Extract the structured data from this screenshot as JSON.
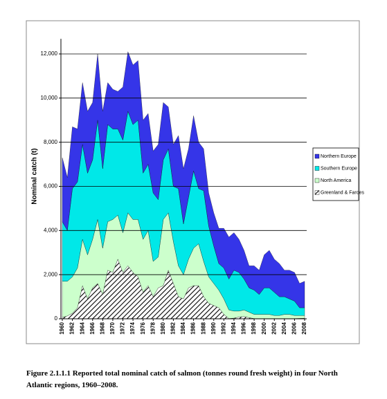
{
  "chart_data": {
    "type": "stacked-area",
    "y_label": "Nominal catch (t)",
    "caption": "Figure 2.1.1.1 Reported total nominal catch of salmon (tonnes round fresh weight) in four North Atlantic regions, 1960–2008.",
    "x": [
      1960,
      1961,
      1962,
      1963,
      1964,
      1965,
      1966,
      1967,
      1968,
      1969,
      1970,
      1971,
      1972,
      1973,
      1974,
      1975,
      1976,
      1977,
      1978,
      1979,
      1980,
      1981,
      1982,
      1983,
      1984,
      1985,
      1986,
      1987,
      1988,
      1989,
      1990,
      1991,
      1992,
      1993,
      1994,
      1995,
      1996,
      1997,
      1998,
      1999,
      2000,
      2001,
      2002,
      2003,
      2004,
      2005,
      2006,
      2007,
      2008
    ],
    "xlim": [
      1960,
      2008
    ],
    "xticks": [
      1960,
      1962,
      1964,
      1966,
      1968,
      1970,
      1972,
      1974,
      1976,
      1978,
      1980,
      1982,
      1984,
      1986,
      1988,
      1990,
      1992,
      1994,
      1996,
      1998,
      2000,
      2002,
      2004,
      2006,
      2008
    ],
    "ylim": [
      0,
      13000
    ],
    "yticks": [
      0,
      {
        "value": 2000,
        "label": "2,000"
      },
      {
        "value": 4000,
        "label": "4,000"
      },
      {
        "value": 6000,
        "label": "6,000"
      },
      {
        "value": 8000,
        "label": "8,000"
      },
      {
        "value": 10000,
        "label": "10,000"
      },
      {
        "value": 12000,
        "label": "12,000"
      }
    ],
    "grid": true,
    "legend": "right",
    "series": [
      {
        "name": "Northern Europe",
        "color": "#3535e8",
        "values": [
          2900,
          2400,
          2800,
          2400,
          2800,
          2800,
          2600,
          3000,
          2600,
          1900,
          1800,
          1700,
          2400,
          2700,
          2700,
          2700,
          2400,
          2300,
          1900,
          2500,
          2600,
          1900,
          1900,
          2400,
          2500,
          2200,
          2500,
          2100,
          1900,
          1500,
          1500,
          1600,
          1800,
          1900,
          1700,
          1500,
          1300,
          1000,
          1100,
          1100,
          1500,
          1700,
          1500,
          1500,
          1200,
          1300,
          1300,
          1100,
          1200
        ]
      },
      {
        "name": "Southern Europe",
        "color": "#00e8e8",
        "values": [
          2700,
          2300,
          4000,
          3900,
          4300,
          3700,
          3600,
          4500,
          3600,
          4400,
          4100,
          3900,
          4200,
          4600,
          4300,
          4500,
          3000,
          3000,
          3100,
          2600,
          2700,
          2900,
          2500,
          3500,
          2300,
          2800,
          3500,
          2500,
          3200,
          2300,
          1700,
          1200,
          1400,
          1400,
          1850,
          1750,
          1400,
          1100,
          1100,
          900,
          1200,
          1200,
          1050,
          850,
          800,
          700,
          650,
          350,
          350
        ]
      },
      {
        "name": "North America",
        "color": "#ccffcc",
        "values": [
          1640,
          1570,
          1650,
          1800,
          2100,
          2000,
          2200,
          2900,
          2100,
          2200,
          2400,
          2000,
          1800,
          2400,
          2400,
          2600,
          2400,
          2500,
          1600,
          1400,
          3000,
          2600,
          1900,
          1400,
          1100,
          1300,
          1700,
          1900,
          1600,
          1200,
          1000,
          800,
          700,
          390,
          320,
          270,
          300,
          250,
          190,
          190,
          190,
          190,
          140,
          140,
          190,
          190,
          140,
          130,
          125
        ]
      },
      {
        "name": "Greenland & Faroes",
        "color": "#000000",
        "pattern": "hatch",
        "values": [
          60,
          130,
          250,
          500,
          1500,
          900,
          1400,
          1600,
          1100,
          2200,
          2100,
          2700,
          2100,
          2400,
          2100,
          1900,
          1200,
          1500,
          1000,
          1400,
          1500,
          2200,
          1600,
          1000,
          900,
          1400,
          1500,
          1500,
          1000,
          700,
          600,
          500,
          200,
          10,
          30,
          80,
          100,
          50,
          10,
          10,
          10,
          10,
          10,
          10,
          10,
          10,
          10,
          20,
          25
        ]
      }
    ]
  }
}
